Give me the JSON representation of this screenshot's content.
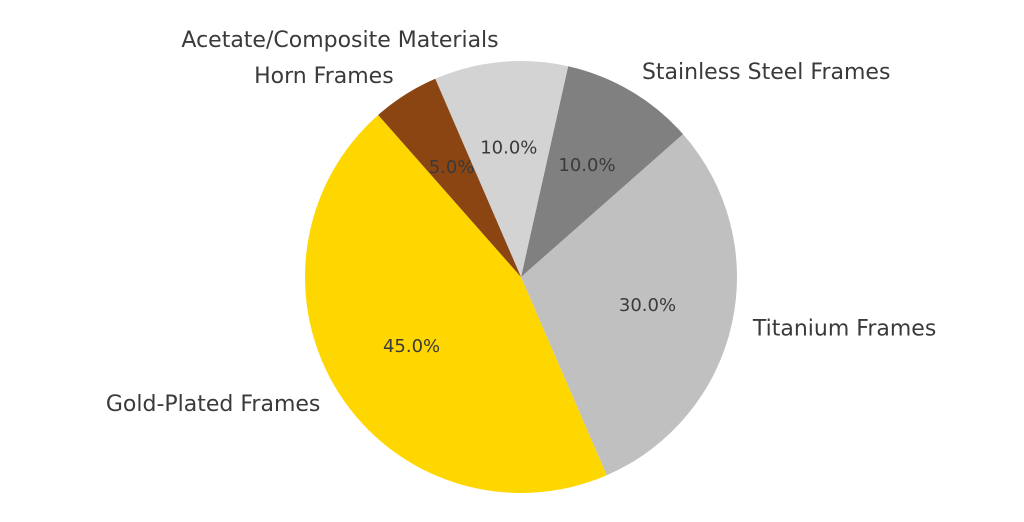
{
  "chart_data": {
    "type": "pie",
    "start_angle_deg": 131.4,
    "direction": "counterclockwise",
    "slices": [
      {
        "label": "Gold-Plated Frames",
        "value": 45.0,
        "pct_label": "45.0%",
        "color": "#FFD700"
      },
      {
        "label": "Titanium Frames",
        "value": 30.0,
        "pct_label": "30.0%",
        "color": "#C0C0C0"
      },
      {
        "label": "Stainless Steel Frames",
        "value": 10.0,
        "pct_label": "10.0%",
        "color": "#808080"
      },
      {
        "label": "Acetate/Composite Materials",
        "value": 10.0,
        "pct_label": "10.0%",
        "color": "#D3D3D3"
      },
      {
        "label": "Horn Frames",
        "value": 5.0,
        "pct_label": "5.0%",
        "color": "#8B4513"
      }
    ]
  }
}
